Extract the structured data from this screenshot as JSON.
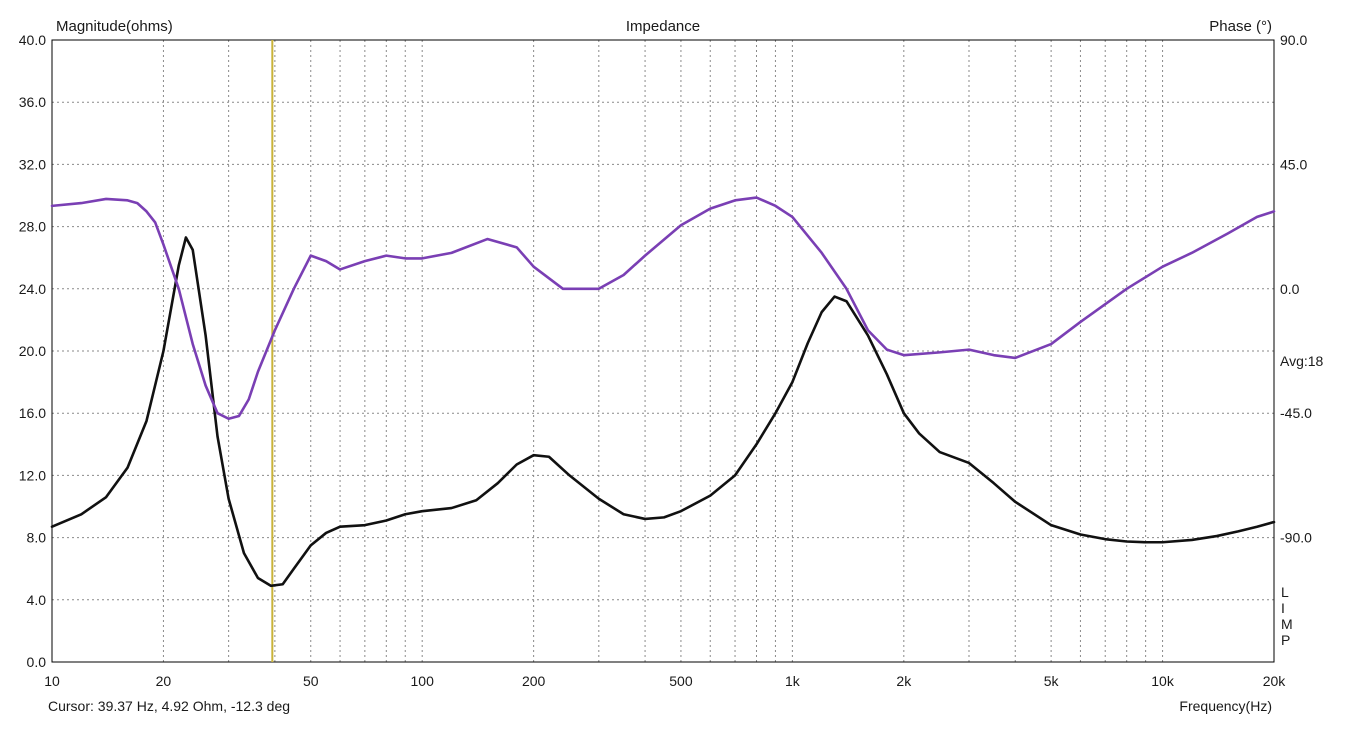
{
  "chart_data": {
    "type": "line",
    "title": "Impedance",
    "left_axis_label": "Magnitude(ohms)",
    "right_axis_label": "Phase (°)",
    "xlabel": "Frequency(Hz)",
    "x_scale": "log",
    "xlim": [
      10,
      20000
    ],
    "ylim_left": [
      0,
      40
    ],
    "ylim_right": [
      -135,
      90
    ],
    "grid": true,
    "x_ticks": [
      {
        "v": 10,
        "label": "10"
      },
      {
        "v": 20,
        "label": "20"
      },
      {
        "v": 50,
        "label": "50"
      },
      {
        "v": 100,
        "label": "100"
      },
      {
        "v": 200,
        "label": "200"
      },
      {
        "v": 500,
        "label": "500"
      },
      {
        "v": 1000,
        "label": "1k"
      },
      {
        "v": 2000,
        "label": "2k"
      },
      {
        "v": 5000,
        "label": "5k"
      },
      {
        "v": 10000,
        "label": "10k"
      },
      {
        "v": 20000,
        "label": "20k"
      }
    ],
    "y_left_ticks": [
      "0.0",
      "4.0",
      "8.0",
      "12.0",
      "16.0",
      "20.0",
      "24.0",
      "28.0",
      "32.0",
      "36.0",
      "40.0"
    ],
    "y_right_ticks": [
      {
        "v": 90,
        "label": "90.0"
      },
      {
        "v": 45,
        "label": "45.0"
      },
      {
        "v": 0,
        "label": "0.0"
      },
      {
        "v": -45,
        "label": "-45.0"
      },
      {
        "v": -90,
        "label": "-90.0"
      }
    ],
    "avg_label": "Avg:18",
    "side_label": [
      "L",
      "I",
      "M",
      "P"
    ],
    "cursor": {
      "frequency_hz": 39.37,
      "text": "Cursor: 39.37 Hz, 4.92 Ohm, -12.3 deg"
    },
    "series": [
      {
        "axis": "left",
        "color": "#111111",
        "points": [
          [
            10,
            8.7
          ],
          [
            12,
            9.5
          ],
          [
            14,
            10.6
          ],
          [
            16,
            12.5
          ],
          [
            18,
            15.5
          ],
          [
            20,
            20.0
          ],
          [
            22,
            25.5
          ],
          [
            23,
            27.3
          ],
          [
            24,
            26.5
          ],
          [
            26,
            21.0
          ],
          [
            28,
            14.5
          ],
          [
            30,
            10.5
          ],
          [
            33,
            7.0
          ],
          [
            36,
            5.4
          ],
          [
            39,
            4.9
          ],
          [
            42,
            5.0
          ],
          [
            45,
            6.0
          ],
          [
            50,
            7.5
          ],
          [
            55,
            8.3
          ],
          [
            60,
            8.7
          ],
          [
            70,
            8.8
          ],
          [
            80,
            9.1
          ],
          [
            90,
            9.5
          ],
          [
            100,
            9.7
          ],
          [
            120,
            9.9
          ],
          [
            140,
            10.4
          ],
          [
            160,
            11.5
          ],
          [
            180,
            12.7
          ],
          [
            200,
            13.3
          ],
          [
            220,
            13.2
          ],
          [
            250,
            12.0
          ],
          [
            300,
            10.5
          ],
          [
            350,
            9.5
          ],
          [
            400,
            9.2
          ],
          [
            450,
            9.3
          ],
          [
            500,
            9.7
          ],
          [
            600,
            10.7
          ],
          [
            700,
            12.0
          ],
          [
            800,
            14.0
          ],
          [
            900,
            16.0
          ],
          [
            1000,
            18.0
          ],
          [
            1100,
            20.5
          ],
          [
            1200,
            22.5
          ],
          [
            1300,
            23.5
          ],
          [
            1400,
            23.2
          ],
          [
            1600,
            21.0
          ],
          [
            1800,
            18.5
          ],
          [
            2000,
            16.0
          ],
          [
            2200,
            14.7
          ],
          [
            2500,
            13.5
          ],
          [
            3000,
            12.8
          ],
          [
            3500,
            11.5
          ],
          [
            4000,
            10.3
          ],
          [
            5000,
            8.8
          ],
          [
            6000,
            8.2
          ],
          [
            7000,
            7.9
          ],
          [
            8000,
            7.75
          ],
          [
            9000,
            7.7
          ],
          [
            10000,
            7.7
          ],
          [
            12000,
            7.85
          ],
          [
            14000,
            8.1
          ],
          [
            16000,
            8.4
          ],
          [
            18000,
            8.7
          ],
          [
            20000,
            9.0
          ]
        ]
      },
      {
        "axis": "right",
        "color": "#7a3fb4",
        "points": [
          [
            10,
            30
          ],
          [
            12,
            31
          ],
          [
            14,
            32.5
          ],
          [
            16,
            32
          ],
          [
            17,
            31
          ],
          [
            18,
            28
          ],
          [
            19,
            24
          ],
          [
            20,
            16
          ],
          [
            22,
            0
          ],
          [
            24,
            -20
          ],
          [
            26,
            -35
          ],
          [
            28,
            -45
          ],
          [
            30,
            -47
          ],
          [
            32,
            -46
          ],
          [
            34,
            -40
          ],
          [
            36,
            -30
          ],
          [
            40,
            -15
          ],
          [
            45,
            0
          ],
          [
            50,
            12
          ],
          [
            55,
            10
          ],
          [
            60,
            7
          ],
          [
            70,
            10
          ],
          [
            80,
            12
          ],
          [
            90,
            11
          ],
          [
            100,
            11
          ],
          [
            120,
            13
          ],
          [
            150,
            18
          ],
          [
            180,
            15
          ],
          [
            200,
            8
          ],
          [
            240,
            0
          ],
          [
            300,
            0
          ],
          [
            350,
            5
          ],
          [
            400,
            12
          ],
          [
            500,
            23
          ],
          [
            600,
            29
          ],
          [
            700,
            32
          ],
          [
            800,
            33
          ],
          [
            900,
            30
          ],
          [
            1000,
            26
          ],
          [
            1200,
            13
          ],
          [
            1400,
            0
          ],
          [
            1600,
            -15
          ],
          [
            1800,
            -22
          ],
          [
            2000,
            -24
          ],
          [
            2500,
            -23
          ],
          [
            3000,
            -22
          ],
          [
            3500,
            -24
          ],
          [
            4000,
            -25
          ],
          [
            5000,
            -20
          ],
          [
            6000,
            -12
          ],
          [
            8000,
            0
          ],
          [
            10000,
            8
          ],
          [
            12000,
            13
          ],
          [
            15000,
            20
          ],
          [
            18000,
            26
          ],
          [
            20000,
            28
          ]
        ]
      }
    ]
  }
}
